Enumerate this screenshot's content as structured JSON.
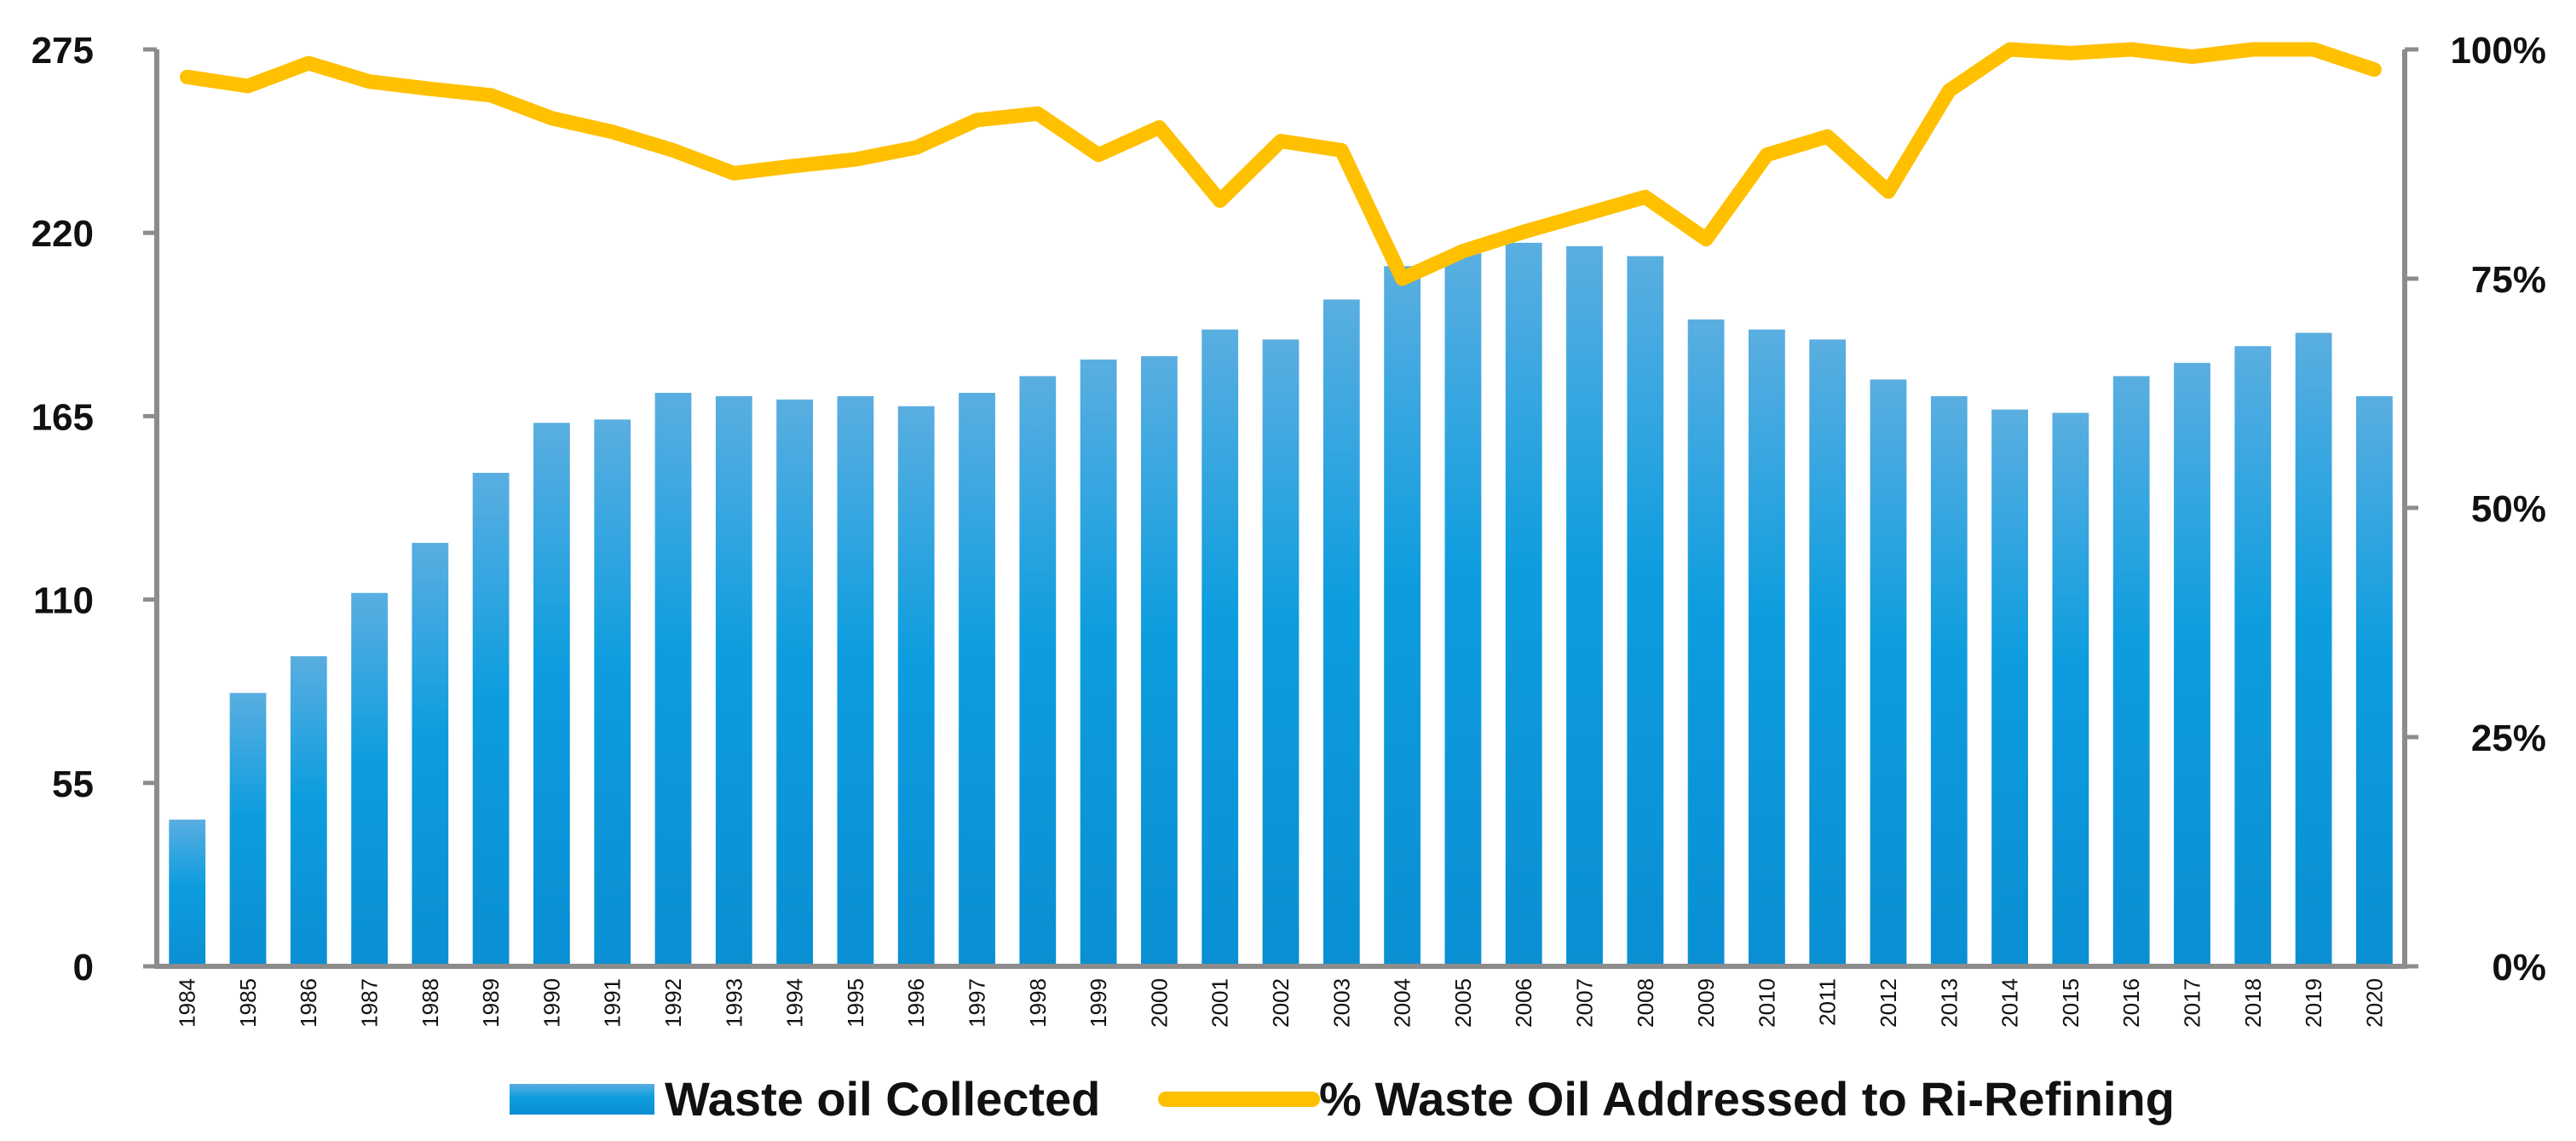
{
  "chart_data": {
    "type": "bar+line",
    "categories": [
      "1984",
      "1985",
      "1986",
      "1987",
      "1988",
      "1989",
      "1990",
      "1991",
      "1992",
      "1993",
      "1994",
      "1995",
      "1996",
      "1997",
      "1998",
      "1999",
      "2000",
      "2001",
      "2002",
      "2003",
      "2004",
      "2005",
      "2006",
      "2007",
      "2008",
      "2009",
      "2010",
      "2011",
      "2012",
      "2013",
      "2014",
      "2015",
      "2016",
      "2017",
      "2018",
      "2019",
      "2020"
    ],
    "series": [
      {
        "name": "Waste oil Collected",
        "type": "bar",
        "axis": "left",
        "color": "#0096dc",
        "color_light": "#5aaee0",
        "values": [
          44,
          82,
          93,
          112,
          127,
          148,
          163,
          164,
          172,
          171,
          170,
          171,
          168,
          172,
          177,
          182,
          183,
          191,
          188,
          200,
          210,
          214,
          217,
          216,
          213,
          194,
          191,
          188,
          176,
          171,
          167,
          166,
          177,
          181,
          186,
          190,
          171
        ]
      },
      {
        "name": "% Waste Oil Addressed to Ri-Refining",
        "type": "line",
        "axis": "right",
        "color": "#ffc000",
        "values": [
          97,
          96,
          98.5,
          96.5,
          95.7,
          95,
          92.5,
          91,
          89,
          86.5,
          87.3,
          88,
          89.3,
          92.3,
          93,
          88.5,
          91.5,
          83.5,
          90,
          89,
          75,
          78,
          80.1,
          82,
          83.9,
          79.3,
          88.5,
          90.5,
          84.5,
          95.5,
          100,
          99.6,
          100,
          99.2,
          100,
          100,
          97.8
        ]
      }
    ],
    "axes": {
      "left": {
        "ticks": [
          "0",
          "55",
          "110",
          "165",
          "220",
          "275"
        ],
        "min": 0,
        "max": 275
      },
      "right": {
        "ticks": [
          "0%",
          "25%",
          "50%",
          "75%",
          "100%"
        ],
        "min": 0,
        "max": 100
      }
    },
    "legend": {
      "position": "bottom",
      "items": [
        "Waste oil Collected",
        "% Waste Oil Addressed to Ri-Refining"
      ]
    },
    "title": "",
    "xlabel": "",
    "ylabel": ""
  }
}
